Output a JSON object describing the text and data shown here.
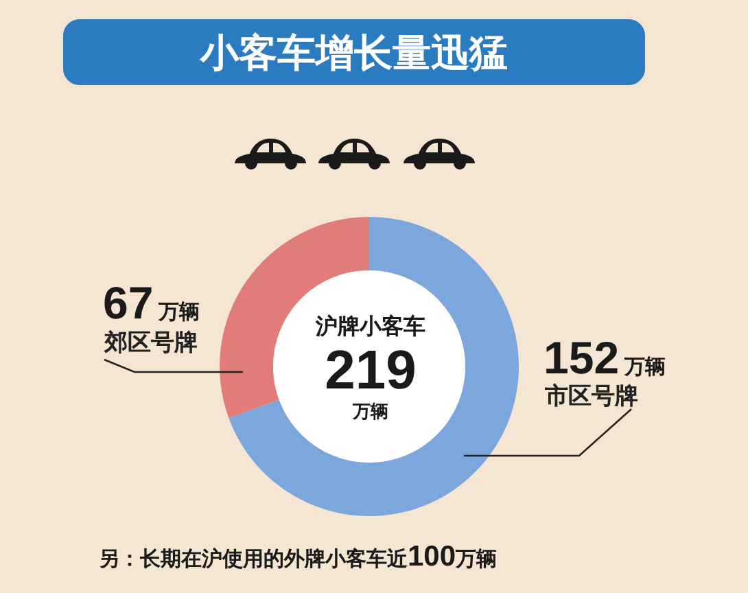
{
  "chart_data": {
    "type": "donut",
    "title": "小客车增长量迅猛",
    "categories": [
      "市区号牌",
      "郊区号牌"
    ],
    "values": [
      152,
      67
    ],
    "colors": [
      "#7ba7dc",
      "#e27c79"
    ],
    "value_labels": [
      "152万辆",
      "67万辆"
    ],
    "annotations": [
      "沪牌小客车",
      "219",
      "万辆",
      "另：长期在沪使用的外牌小客车近100万辆"
    ]
  }
}
